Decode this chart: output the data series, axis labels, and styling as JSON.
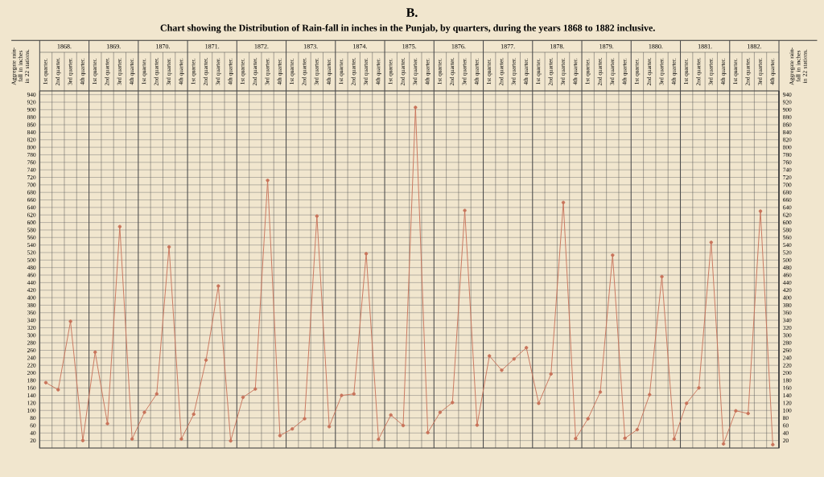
{
  "chart_data": {
    "type": "line",
    "title": "B.",
    "subtitle": "Chart showing the Distribution of Rain-fall in inches in the Punjab, by quarters, during the years 1868 to 1882 inclusive.",
    "ylabel": "Aggregate rain-fall in inches in 22 stations.",
    "y2label": "Aggregate rain-fall in inches in 22 stations.",
    "categories": [
      "1st quarter.",
      "2nd quarter.",
      "3rd quarter.",
      "4th quarter.",
      "1st quarter.",
      "2nd quarter.",
      "3rd quarter.",
      "4th quarter.",
      "1st quarter.",
      "2nd quarter.",
      "3rd quarter.",
      "4th quarter.",
      "1st quarter.",
      "2nd quarter.",
      "3rd quarter.",
      "4th quarter.",
      "1st quarter.",
      "2nd quarter.",
      "3rd quarter.",
      "4th quarter.",
      "1st quarter.",
      "2nd quarter.",
      "3rd quarter.",
      "4th quarter.",
      "1st quarter.",
      "2nd quarter.",
      "3rd quarter.",
      "4th quarter.",
      "1st quarter.",
      "2nd quarter.",
      "3rd quarter.",
      "4th quarter.",
      "1st quarter.",
      "2nd quarter.",
      "3rd quarter.",
      "4th quarter.",
      "1st quarter.",
      "2nd quarter.",
      "3rd quarter.",
      "4th quarter.",
      "1st quarter.",
      "2nd quarter.",
      "3rd quarter.",
      "4th quarter.",
      "1st quarter.",
      "2nd quarter.",
      "3rd quarter.",
      "4th quarter.",
      "1st quarter.",
      "2nd quarter.",
      "3rd quarter.",
      "4th quarter.",
      "1st quarter.",
      "2nd quarter.",
      "3rd quarter.",
      "4th quarter.",
      "1st quarter.",
      "2nd quarter.",
      "3rd quarter.",
      "4th quarter."
    ],
    "annotations": [
      "1868.",
      "1869.",
      "1870.",
      "1871.",
      "1872.",
      "1873.",
      "1874.",
      "1875.",
      "1876.",
      "1877.",
      "1878.",
      "1879.",
      "1880.",
      "1881.",
      "1882."
    ],
    "series": [
      {
        "color": "#c8735a",
        "values": [
          174,
          155,
          337,
          20,
          255,
          65,
          589,
          24,
          95,
          144,
          535,
          24,
          90,
          234,
          431,
          19,
          135,
          157,
          712,
          33,
          51,
          78,
          617,
          57,
          140,
          144,
          517,
          23,
          88,
          60,
          906,
          41,
          95,
          121,
          632,
          61,
          245,
          207,
          237,
          267,
          119,
          197,
          653,
          25,
          78,
          149,
          513,
          26,
          49,
          142,
          456,
          24,
          119,
          160,
          547,
          11,
          99,
          92,
          630,
          9
        ]
      }
    ],
    "ylim": [
      0,
      950
    ],
    "yticks": [
      20,
      40,
      60,
      80,
      100,
      120,
      140,
      160,
      180,
      200,
      220,
      240,
      260,
      280,
      300,
      320,
      340,
      360,
      380,
      400,
      420,
      440,
      460,
      480,
      500,
      520,
      540,
      560,
      580,
      600,
      620,
      640,
      660,
      680,
      700,
      720,
      740,
      760,
      780,
      800,
      820,
      840,
      860,
      880,
      900,
      920,
      940
    ],
    "y2lim": [
      0,
      950
    ],
    "y2ticks": [
      20,
      40,
      60,
      80,
      100,
      120,
      140,
      160,
      180,
      200,
      220,
      240,
      260,
      280,
      300,
      320,
      340,
      360,
      380,
      400,
      420,
      440,
      460,
      480,
      500,
      520,
      540,
      560,
      580,
      600,
      620,
      640,
      660,
      680,
      700,
      720,
      740,
      760,
      780,
      800,
      820,
      840,
      860,
      880,
      900,
      920,
      940
    ],
    "grid": true,
    "marker": "circle",
    "line_style": "solid"
  }
}
